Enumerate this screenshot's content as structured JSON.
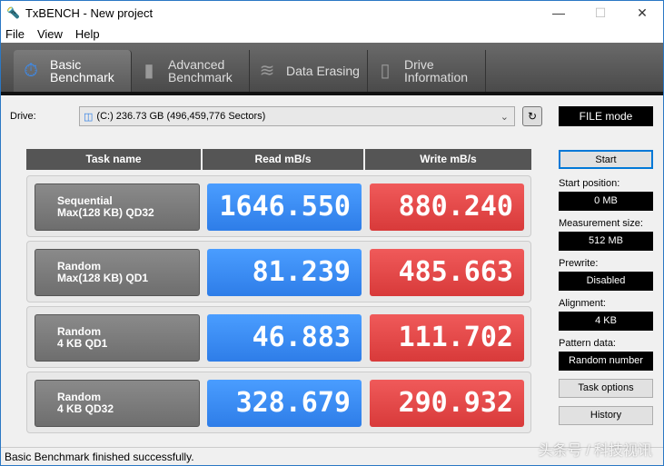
{
  "window": {
    "title": "TxBENCH - New project",
    "minimize": "—",
    "maximize": "☐",
    "close": "✕"
  },
  "menu": [
    "File",
    "View",
    "Help"
  ],
  "tabs": [
    {
      "label1": "Basic",
      "label2": "Benchmark",
      "icon": "stopwatch-icon"
    },
    {
      "label1": "Advanced",
      "label2": "Benchmark",
      "icon": "bar-chart-icon"
    },
    {
      "label1": "Data Erasing",
      "label2": "",
      "icon": "eraser-icon"
    },
    {
      "label1": "Drive",
      "label2": "Information",
      "icon": "drive-info-icon"
    }
  ],
  "drive": {
    "label": "Drive:",
    "value": "(C:)   236.73 GB (496,459,776 Sectors)",
    "mode": "FILE mode"
  },
  "table": {
    "headers": [
      "Task name",
      "Read mB/s",
      "Write mB/s"
    ],
    "rows": [
      {
        "l1": "Sequential",
        "l2": "Max(128 KB) QD32",
        "read": "1646.550",
        "write": "880.240"
      },
      {
        "l1": "Random",
        "l2": "Max(128 KB) QD1",
        "read": "81.239",
        "write": "485.663"
      },
      {
        "l1": "Random",
        "l2": "4 KB QD1",
        "read": "46.883",
        "write": "111.702"
      },
      {
        "l1": "Random",
        "l2": "4 KB QD32",
        "read": "328.679",
        "write": "290.932"
      }
    ]
  },
  "side": {
    "start": "Start",
    "start_position_label": "Start position:",
    "start_position": "0 MB",
    "measurement_size_label": "Measurement size:",
    "measurement_size": "512 MB",
    "prewrite_label": "Prewrite:",
    "prewrite": "Disabled",
    "alignment_label": "Alignment:",
    "alignment": "4 KB",
    "data_label": "Pattern data:",
    "data": "Random number",
    "task_options": "Task options",
    "history": "History"
  },
  "status": "Basic Benchmark finished successfully.",
  "watermark": "头条号 / 科技视讯",
  "colors": {
    "read": "#2e7de8",
    "write": "#d83a3a"
  }
}
